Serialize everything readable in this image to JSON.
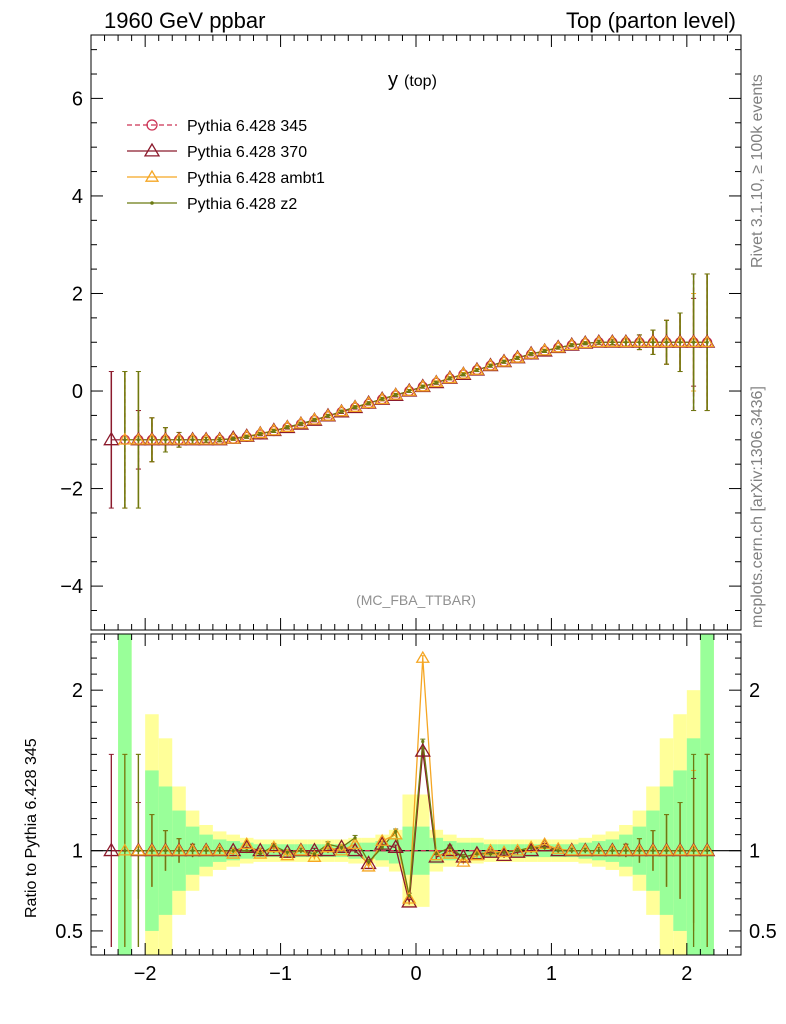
{
  "header": {
    "left": "1960 GeV ppbar",
    "right": "Top (parton level)"
  },
  "side_text": {
    "rivet": "Rivet 3.1.10, ≥ 100k events",
    "mcplots": "mcplots.cern.ch [arXiv:1306.3436]"
  },
  "chart_data": [
    {
      "type": "line",
      "title": "y (top)",
      "title_main": "y",
      "title_sub": "(top)",
      "watermark": "(MC_FBA_TTBAR)",
      "xlim": [
        -2.4,
        2.4
      ],
      "ylim": [
        -4.9,
        7.3
      ],
      "xticks": [
        -2,
        -1,
        0,
        1,
        2
      ],
      "yticks": [
        -4,
        -2,
        0,
        2,
        4,
        6
      ],
      "xticklabels": [
        "−2",
        "−1",
        "0",
        "1",
        "2"
      ],
      "yticklabels": [
        "−4",
        "−2",
        "0",
        "2",
        "4",
        "6"
      ],
      "legend_position": "top-left",
      "series": [
        {
          "name": "Pythia 6.428 345",
          "color": "#cc3355",
          "marker": "circle",
          "dashed": true,
          "x": [
            -2.15,
            -2.05,
            -1.95,
            -1.85,
            -1.75,
            -1.65,
            -1.55,
            -1.45,
            -1.35,
            -1.25,
            -1.15,
            -1.05,
            -0.95,
            -0.85,
            -0.75,
            -0.65,
            -0.55,
            -0.45,
            -0.35,
            -0.25,
            -0.15,
            -0.05,
            0.05,
            0.15,
            0.25,
            0.35,
            0.45,
            0.55,
            0.65,
            0.75,
            0.85,
            0.95,
            1.05,
            1.15,
            1.25,
            1.35,
            1.45,
            1.55,
            1.65,
            1.75,
            1.85,
            1.95,
            2.05,
            2.15
          ],
          "y": [
            -1.0,
            -1.0,
            -1.0,
            -1.0,
            -1.0,
            -1.0,
            -1.0,
            -1.0,
            -0.98,
            -0.94,
            -0.89,
            -0.82,
            -0.75,
            -0.68,
            -0.6,
            -0.52,
            -0.43,
            -0.34,
            -0.26,
            -0.17,
            -0.09,
            0.0,
            0.09,
            0.17,
            0.26,
            0.34,
            0.43,
            0.52,
            0.6,
            0.68,
            0.75,
            0.82,
            0.89,
            0.94,
            0.98,
            1.0,
            1.0,
            1.0,
            1.0,
            1.0,
            1.0,
            1.0,
            1.0,
            1.0
          ],
          "err": [
            1.4,
            0.6,
            0.45,
            0.25,
            0.15,
            0.08,
            0.05,
            0.04,
            0.03,
            0.03,
            0.03,
            0.03,
            0.03,
            0.03,
            0.03,
            0.03,
            0.03,
            0.03,
            0.03,
            0.03,
            0.03,
            0.03,
            0.03,
            0.03,
            0.03,
            0.03,
            0.03,
            0.03,
            0.03,
            0.03,
            0.03,
            0.03,
            0.03,
            0.03,
            0.03,
            0.04,
            0.05,
            0.08,
            0.15,
            0.25,
            0.45,
            0.6,
            1.4,
            1.4
          ]
        },
        {
          "name": "Pythia 6.428 370",
          "color": "#8b1a2c",
          "marker": "triangle",
          "dashed": false,
          "x": [
            -2.25,
            -2.05,
            -1.95,
            -1.85,
            -1.75,
            -1.65,
            -1.55,
            -1.45,
            -1.35,
            -1.25,
            -1.15,
            -1.05,
            -0.95,
            -0.85,
            -0.75,
            -0.65,
            -0.55,
            -0.45,
            -0.35,
            -0.25,
            -0.15,
            -0.05,
            0.05,
            0.15,
            0.25,
            0.35,
            0.45,
            0.55,
            0.65,
            0.75,
            0.85,
            0.95,
            1.05,
            1.15,
            1.25,
            1.35,
            1.45,
            1.55,
            1.65,
            1.75,
            1.85,
            1.95,
            2.05,
            2.15
          ],
          "y": [
            -1.0,
            -1.0,
            -1.0,
            -1.0,
            -1.0,
            -1.0,
            -1.0,
            -1.0,
            -0.97,
            -0.93,
            -0.88,
            -0.81,
            -0.75,
            -0.68,
            -0.6,
            -0.51,
            -0.43,
            -0.34,
            -0.25,
            -0.17,
            -0.09,
            0.0,
            0.09,
            0.17,
            0.26,
            0.34,
            0.43,
            0.52,
            0.6,
            0.68,
            0.76,
            0.82,
            0.89,
            0.94,
            0.98,
            1.0,
            1.0,
            1.0,
            1.0,
            1.0,
            1.0,
            1.0,
            1.0,
            1.0
          ],
          "err": [
            1.4,
            0.6,
            0.45,
            0.25,
            0.15,
            0.08,
            0.05,
            0.04,
            0.03,
            0.03,
            0.03,
            0.03,
            0.03,
            0.03,
            0.03,
            0.03,
            0.03,
            0.03,
            0.03,
            0.03,
            0.03,
            0.03,
            0.03,
            0.03,
            0.03,
            0.03,
            0.03,
            0.03,
            0.03,
            0.03,
            0.03,
            0.03,
            0.03,
            0.03,
            0.03,
            0.04,
            0.05,
            0.08,
            0.15,
            0.25,
            0.45,
            0.6,
            0.9,
            1.4
          ]
        },
        {
          "name": "Pythia 6.428 ambt1",
          "color": "#f5a623",
          "marker": "triangle",
          "dashed": false,
          "x": [
            -2.15,
            -2.05,
            -1.95,
            -1.85,
            -1.75,
            -1.65,
            -1.55,
            -1.45,
            -1.35,
            -1.25,
            -1.15,
            -1.05,
            -0.95,
            -0.85,
            -0.75,
            -0.65,
            -0.55,
            -0.45,
            -0.35,
            -0.25,
            -0.15,
            -0.05,
            0.05,
            0.15,
            0.25,
            0.35,
            0.45,
            0.55,
            0.65,
            0.75,
            0.85,
            0.95,
            1.05,
            1.15,
            1.25,
            1.35,
            1.45,
            1.55,
            1.65,
            1.75,
            1.85,
            1.95,
            2.05,
            2.15
          ],
          "y": [
            -1.0,
            -1.0,
            -1.0,
            -1.0,
            -1.0,
            -1.0,
            -1.0,
            -1.0,
            -0.98,
            -0.93,
            -0.87,
            -0.81,
            -0.74,
            -0.67,
            -0.59,
            -0.51,
            -0.42,
            -0.33,
            -0.25,
            -0.17,
            -0.08,
            0.0,
            0.09,
            0.18,
            0.26,
            0.35,
            0.43,
            0.52,
            0.6,
            0.68,
            0.76,
            0.83,
            0.89,
            0.94,
            0.98,
            1.0,
            1.0,
            1.0,
            1.0,
            1.0,
            1.0,
            1.0,
            1.0,
            1.0
          ],
          "err": [
            1.4,
            1.4,
            0.45,
            0.25,
            0.15,
            0.08,
            0.05,
            0.04,
            0.03,
            0.03,
            0.03,
            0.03,
            0.03,
            0.03,
            0.03,
            0.03,
            0.03,
            0.03,
            0.03,
            0.03,
            0.03,
            0.03,
            0.03,
            0.03,
            0.03,
            0.03,
            0.03,
            0.03,
            0.03,
            0.03,
            0.03,
            0.03,
            0.03,
            0.03,
            0.03,
            0.04,
            0.05,
            0.08,
            0.15,
            0.25,
            0.45,
            0.6,
            1.0,
            1.4
          ]
        },
        {
          "name": "Pythia 6.428 z2",
          "color": "#6b7a12",
          "marker": "dot",
          "dashed": false,
          "x": [
            -2.15,
            -2.05,
            -1.95,
            -1.85,
            -1.75,
            -1.65,
            -1.55,
            -1.45,
            -1.35,
            -1.25,
            -1.15,
            -1.05,
            -0.95,
            -0.85,
            -0.75,
            -0.65,
            -0.55,
            -0.45,
            -0.35,
            -0.25,
            -0.15,
            -0.05,
            0.05,
            0.15,
            0.25,
            0.35,
            0.45,
            0.55,
            0.65,
            0.75,
            0.85,
            0.95,
            1.05,
            1.15,
            1.25,
            1.35,
            1.45,
            1.55,
            1.65,
            1.75,
            1.85,
            1.95,
            2.05,
            2.15
          ],
          "y": [
            -1.0,
            -1.0,
            -1.0,
            -1.0,
            -1.0,
            -1.0,
            -1.0,
            -1.0,
            -0.98,
            -0.94,
            -0.88,
            -0.82,
            -0.74,
            -0.67,
            -0.59,
            -0.51,
            -0.42,
            -0.33,
            -0.25,
            -0.16,
            -0.08,
            0.0,
            0.09,
            0.17,
            0.26,
            0.34,
            0.43,
            0.52,
            0.6,
            0.68,
            0.76,
            0.82,
            0.89,
            0.94,
            0.98,
            1.0,
            1.0,
            1.0,
            1.0,
            1.0,
            1.0,
            1.0,
            1.0,
            1.0
          ],
          "err": [
            1.4,
            1.4,
            0.45,
            0.25,
            0.15,
            0.08,
            0.05,
            0.04,
            0.03,
            0.03,
            0.03,
            0.03,
            0.03,
            0.03,
            0.03,
            0.03,
            0.03,
            0.03,
            0.03,
            0.03,
            0.03,
            0.03,
            0.03,
            0.03,
            0.03,
            0.03,
            0.03,
            0.03,
            0.03,
            0.03,
            0.03,
            0.03,
            0.03,
            0.03,
            0.03,
            0.04,
            0.05,
            0.08,
            0.15,
            0.25,
            0.45,
            0.6,
            1.4,
            1.4
          ]
        }
      ]
    },
    {
      "type": "line",
      "ylabel": "Ratio to Pythia 6.428 345",
      "xlim": [
        -2.4,
        2.4
      ],
      "ylim": [
        0.35,
        2.35
      ],
      "xticks": [
        -2,
        -1,
        0,
        1,
        2
      ],
      "yticks": [
        0.5,
        1,
        2
      ],
      "xticklabels": [
        "−2",
        "−1",
        "0",
        "1",
        "2"
      ],
      "yticklabels": [
        "0.5",
        "1",
        "2"
      ],
      "bands": {
        "x": [
          -2.2,
          -2.1,
          -2.0,
          -1.9,
          -1.8,
          -1.7,
          -1.6,
          -1.5,
          -1.4,
          -1.3,
          -1.2,
          -1.1,
          -1.0,
          -0.9,
          -0.8,
          -0.7,
          -0.6,
          -0.5,
          -0.4,
          -0.3,
          -0.2,
          -0.1,
          0.0,
          0.1,
          0.2,
          0.3,
          0.4,
          0.5,
          0.6,
          0.7,
          0.8,
          0.9,
          1.0,
          1.1,
          1.2,
          1.3,
          1.4,
          1.5,
          1.6,
          1.7,
          1.8,
          1.9,
          2.0,
          2.1,
          2.2
        ],
        "green_half": [
          1.5,
          0.0,
          0.5,
          0.4,
          0.25,
          0.15,
          0.1,
          0.07,
          0.06,
          0.05,
          0.04,
          0.04,
          0.04,
          0.04,
          0.04,
          0.04,
          0.04,
          0.05,
          0.05,
          0.06,
          0.08,
          0.15,
          0.15,
          0.08,
          0.06,
          0.05,
          0.05,
          0.04,
          0.04,
          0.04,
          0.04,
          0.04,
          0.04,
          0.04,
          0.05,
          0.06,
          0.07,
          0.1,
          0.15,
          0.25,
          0.4,
          0.5,
          0.7,
          1.5
        ],
        "yellow_half": [
          1.5,
          0.0,
          0.85,
          0.7,
          0.4,
          0.25,
          0.16,
          0.12,
          0.1,
          0.08,
          0.07,
          0.07,
          0.07,
          0.07,
          0.07,
          0.07,
          0.07,
          0.08,
          0.08,
          0.1,
          0.13,
          0.35,
          0.35,
          0.13,
          0.1,
          0.08,
          0.08,
          0.07,
          0.07,
          0.07,
          0.07,
          0.07,
          0.07,
          0.07,
          0.08,
          0.1,
          0.12,
          0.16,
          0.25,
          0.4,
          0.7,
          0.85,
          1.0,
          1.5
        ]
      },
      "series": [
        {
          "name": "Pythia 6.428 345",
          "y": [
            1,
            1,
            1,
            1,
            1,
            1,
            1,
            1,
            1,
            1,
            1,
            1,
            1,
            1,
            1,
            1,
            1,
            1,
            1,
            1,
            1,
            1,
            1,
            1,
            1,
            1,
            1,
            1,
            1,
            1,
            1,
            1,
            1,
            1,
            1,
            1,
            1,
            1,
            1,
            1,
            1,
            1,
            1,
            1
          ]
        },
        {
          "name": "Pythia 6.428 370",
          "y": [
            1,
            1,
            1,
            1,
            1,
            1,
            1,
            1,
            1,
            1.02,
            1.0,
            1.0,
            0.99,
            1.0,
            1.0,
            1.0,
            1.02,
            1.0,
            0.92,
            1.04,
            1.02,
            0.68,
            1.62,
            0.96,
            1.0,
            0.96,
            0.98,
            0.99,
            0.97,
            0.99,
            1.0,
            1.03,
            1.0,
            1.0,
            1.0,
            1.0,
            1.0,
            1.0,
            1.0,
            1.0,
            1.0,
            1.0,
            1.0,
            1.0
          ]
        },
        {
          "name": "Pythia 6.428 ambt1",
          "y": [
            1,
            1,
            1,
            1,
            1,
            1,
            1,
            1,
            0.98,
            1.04,
            0.98,
            1.02,
            0.97,
            1.0,
            0.96,
            1.02,
            1.0,
            1.04,
            0.9,
            1.06,
            1.1,
            0.7,
            2.2,
            0.97,
            0.98,
            0.93,
            0.97,
            1.0,
            0.99,
            1.0,
            1.02,
            1.04,
            1.01,
            1.0,
            1.0,
            1.0,
            1.0,
            1.0,
            1.0,
            1.0,
            1.0,
            1.0,
            1.0,
            1.0
          ]
        },
        {
          "name": "Pythia 6.428 z2",
          "y": [
            1,
            1,
            1,
            1,
            1,
            1,
            1,
            1,
            1,
            1.0,
            0.98,
            1.03,
            0.99,
            1.0,
            0.98,
            1.04,
            1.02,
            1.08,
            0.93,
            1.02,
            1.12,
            0.72,
            1.68,
            0.98,
            1.02,
            0.96,
            0.98,
            0.98,
            0.99,
            1.0,
            1.02,
            1.02,
            1.0,
            1.0,
            1.0,
            1.0,
            1.0,
            1.0,
            1.0,
            1.0,
            1.0,
            1.0,
            1.0,
            1.0
          ]
        }
      ]
    }
  ]
}
